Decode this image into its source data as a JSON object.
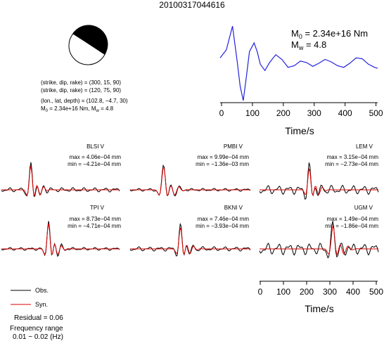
{
  "header": {
    "event_id": "20100317044616"
  },
  "mechanism": {
    "plane1": "(strike, dip, rake) = (300, 15, 90)",
    "plane2": "(strike, dip, rake) = (120, 75, 90)",
    "location": "(lon., lat, depth) = (102.8, −4.7, 30)",
    "moment_line": {
      "m0_text": "M",
      "m0_sub": "0",
      "m0_val": " = 2.34e+16 Nm, M",
      "mw_sub": "w",
      "mw_val": " = 4.8"
    },
    "colors": {
      "compression": "#000000",
      "dilatation": "#ffffff"
    }
  },
  "stf": {
    "m0_label": "M",
    "m0_sub": "0",
    "m0_value": " = 2.34e+16 Nm",
    "mw_label": "M",
    "mw_sub": "w",
    "mw_value": " = 4.8",
    "xlabel": "Time/s",
    "xticks": [
      "0",
      "100",
      "200",
      "300",
      "400",
      "500"
    ],
    "color": "#2222dd"
  },
  "stations": [
    {
      "name": "BLSI V",
      "max": "max = 4.06e−04 mm",
      "min": "min = −4.21e−04 mm"
    },
    {
      "name": "PMBI V",
      "max": "max = 9.99e−04 mm",
      "min": "min = −1.36e−03 mm"
    },
    {
      "name": "LEM V",
      "max": "max = 3.15e−04 mm",
      "min": "min = −2.73e−04 mm"
    },
    {
      "name": "TPI V",
      "max": "max = 8.73e−04 mm",
      "min": "min = −4.71e−04 mm"
    },
    {
      "name": "BKNI V",
      "max": "max = 7.46e−04 mm",
      "min": "min = −3.93e−04 mm"
    },
    {
      "name": "UGM V",
      "max": "max = 1.49e−04 mm",
      "min": "min = −1.86e−04 mm"
    }
  ],
  "wave_axis": {
    "xticks": [
      "0",
      "100",
      "200",
      "300",
      "400",
      "500"
    ],
    "xlabel": "Time/s"
  },
  "legend": {
    "obs_label": "Obs.",
    "obs_color": "#000000",
    "syn_label": "Syn.",
    "syn_color": "#dd0000"
  },
  "residual": "Residual = 0.06",
  "frequency": {
    "title": "Frequency range",
    "range": "0.01 − 0.02 (Hz)"
  },
  "chart_data": [
    {
      "type": "line",
      "title": "",
      "xlabel": "Time/s",
      "ylabel": "",
      "xlim": [
        0,
        510
      ],
      "series": [
        {
          "x": [
            0,
            20,
            40,
            55,
            65,
            75,
            85,
            95,
            110,
            120,
            130,
            145,
            160,
            180,
            200,
            220,
            240,
            260,
            280,
            300,
            320,
            340,
            360,
            380,
            400,
            420,
            440,
            460,
            480,
            500,
            510
          ],
          "y": [
            0.35,
            0.6,
            1.35,
            0.25,
            -0.55,
            -1.0,
            -0.25,
            0.55,
            0.82,
            0.55,
            0.15,
            -0.05,
            0.2,
            0.45,
            0.3,
            0.05,
            0.1,
            0.25,
            0.2,
            0.08,
            0.18,
            0.3,
            0.22,
            0.1,
            0.05,
            0.18,
            0.35,
            0.32,
            0.15,
            0.05,
            0.02
          ]
        }
      ]
    },
    {
      "type": "line",
      "title": "",
      "xlabel": "Time/s",
      "ylabel": "",
      "xlim": [
        0,
        510
      ],
      "series": [
        {
          "name": "Obs.",
          "x": [
            0,
            500
          ],
          "y": [
            0,
            0
          ]
        },
        {
          "name": "Syn.",
          "x": [
            0,
            500
          ],
          "y": [
            0,
            0
          ]
        }
      ]
    }
  ]
}
